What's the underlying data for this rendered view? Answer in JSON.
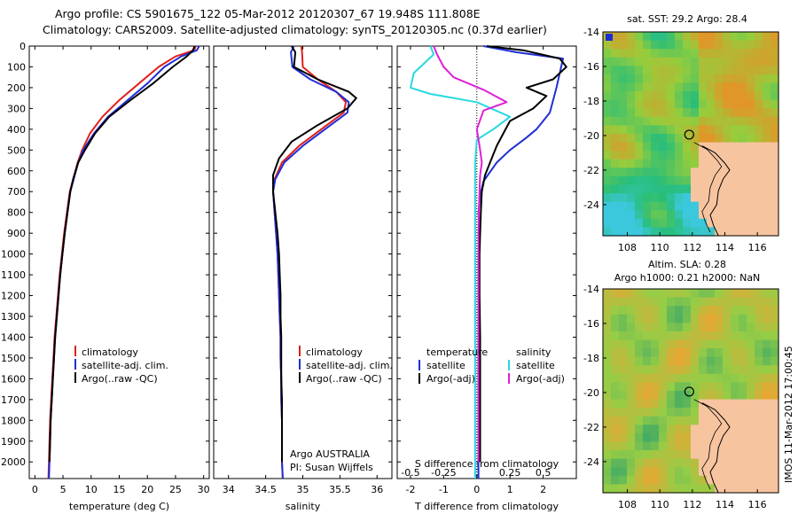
{
  "title": {
    "line1": "Argo profile: CS 5901675_122 05-Mar-2012 20120307_67 19.948S 111.808E",
    "line2": "Climatology: CARS2009. Satellite-adjusted climatology: synTS_20120305.nc (0.37d earlier)"
  },
  "stamp": "IMOS 11-Mar-2012 17:00:45",
  "colors": {
    "climatology": "#e0201b",
    "satellite": "#1f2fd6",
    "argo": "#000000",
    "sal_satellite": "#27d9e0",
    "sal_argo": "#e020d8"
  },
  "chart_data": [
    {
      "type": "line",
      "name": "temperature-panel",
      "xlabel": "temperature (deg C)",
      "ylabel": "",
      "xlim": [
        -1,
        31
      ],
      "ylim": [
        2080,
        0
      ],
      "xticks": [
        0,
        5,
        10,
        15,
        20,
        25,
        30
      ],
      "yticks": [
        0,
        100,
        200,
        300,
        400,
        500,
        600,
        700,
        800,
        900,
        1000,
        1100,
        1200,
        1300,
        1400,
        1500,
        1600,
        1700,
        1800,
        1900,
        2000
      ],
      "legend": {
        "items": [
          "climatology",
          "satellite-adj. clim.",
          "Argo(..raw -QC)"
        ]
      },
      "series": [
        {
          "name": "climatology",
          "color": "#e0201b",
          "x": [
            28.6,
            28.3,
            25,
            22,
            18.5,
            15,
            12,
            9.8,
            8.4,
            7.6,
            6.8,
            6.2,
            5.7,
            5.2,
            4.8,
            4.4,
            4.1,
            3.8,
            3.5,
            3.3,
            3.1,
            2.9,
            2.7,
            2.6,
            2.5,
            2.4
          ],
          "y": [
            0,
            20,
            50,
            100,
            180,
            260,
            340,
            420,
            500,
            560,
            640,
            700,
            800,
            900,
            1000,
            1100,
            1200,
            1300,
            1400,
            1500,
            1600,
            1700,
            1800,
            1900,
            2000,
            2080
          ]
        },
        {
          "name": "satellite-adj. clim.",
          "color": "#1f2fd6",
          "x": [
            29.2,
            28.8,
            26,
            23,
            20,
            16.5,
            13,
            10.5,
            8.6,
            7.7,
            6.9,
            6.3,
            5.8,
            5.3,
            4.9,
            4.5,
            4.2,
            3.9,
            3.6,
            3.4,
            3.2,
            3,
            2.8,
            2.7,
            2.6,
            2.5
          ],
          "y": [
            0,
            20,
            50,
            100,
            180,
            260,
            340,
            420,
            500,
            560,
            640,
            700,
            800,
            900,
            1000,
            1100,
            1200,
            1300,
            1400,
            1500,
            1600,
            1700,
            1800,
            1900,
            2000,
            2080
          ]
        },
        {
          "name": "Argo(..raw -QC)",
          "color": "#000000",
          "x": [
            28.4,
            28.1,
            27,
            24.5,
            21,
            17,
            13.2,
            10.7,
            8.9,
            7.7,
            6.8,
            6.3,
            5.8,
            5.3,
            4.9,
            4.5,
            4.2,
            3.9,
            3.6,
            3.4,
            3.2,
            3,
            2.8,
            2.7,
            2.6
          ],
          "y": [
            0,
            20,
            50,
            100,
            180,
            260,
            340,
            420,
            500,
            560,
            640,
            700,
            800,
            900,
            1000,
            1100,
            1200,
            1300,
            1400,
            1500,
            1600,
            1700,
            1800,
            1900,
            2000
          ]
        }
      ]
    },
    {
      "type": "line",
      "name": "salinity-panel",
      "xlabel": "salinity",
      "ylabel": "",
      "xlim": [
        33.8,
        36.2
      ],
      "ylim": [
        2080,
        0
      ],
      "xticks": [
        34,
        34.5,
        35,
        35.5,
        36
      ],
      "legend": {
        "items": [
          "climatology",
          "satellite-adj. clim.",
          "Argo(..raw -QC)"
        ]
      },
      "annotation": {
        "line1": "Argo AUSTRALIA",
        "line2": "PI: Susan Wijffels"
      },
      "series": [
        {
          "name": "climatology",
          "color": "#e0201b",
          "x": [
            34.98,
            34.99,
            35,
            35.2,
            35.45,
            35.58,
            35.55,
            35.25,
            34.95,
            34.72,
            34.62,
            34.6,
            34.62,
            34.64,
            34.66,
            34.67,
            34.68,
            34.69,
            34.7,
            34.7,
            34.71,
            34.71,
            34.72,
            34.72,
            34.72,
            34.73
          ],
          "y": [
            0,
            30,
            100,
            160,
            220,
            270,
            320,
            400,
            480,
            560,
            640,
            700,
            800,
            900,
            1000,
            1100,
            1200,
            1300,
            1400,
            1500,
            1600,
            1700,
            1800,
            1900,
            2000,
            2080
          ]
        },
        {
          "name": "satellite-adj. clim.",
          "color": "#1f2fd6",
          "x": [
            34.88,
            34.84,
            34.86,
            35.1,
            35.45,
            35.62,
            35.6,
            35.3,
            35,
            34.75,
            34.63,
            34.6,
            34.62,
            34.64,
            34.66,
            34.67,
            34.68,
            34.69,
            34.7,
            34.7,
            34.71,
            34.71,
            34.72,
            34.72,
            34.72,
            34.73
          ],
          "y": [
            0,
            30,
            100,
            160,
            220,
            270,
            320,
            400,
            480,
            560,
            640,
            700,
            800,
            900,
            1000,
            1100,
            1200,
            1300,
            1400,
            1500,
            1600,
            1700,
            1800,
            1900,
            2000,
            2080
          ]
        },
        {
          "name": "Argo(..raw -QC)",
          "color": "#000000",
          "x": [
            34.85,
            34.9,
            34.88,
            35.2,
            35.62,
            35.72,
            35.6,
            35.2,
            34.85,
            34.68,
            34.6,
            34.6,
            34.63,
            34.66,
            34.68,
            34.69,
            34.7,
            34.7,
            34.71,
            34.71,
            34.71,
            34.72,
            34.72,
            34.72,
            34.72
          ],
          "y": [
            0,
            30,
            100,
            160,
            220,
            250,
            300,
            380,
            460,
            540,
            620,
            700,
            800,
            900,
            1000,
            1100,
            1200,
            1300,
            1400,
            1500,
            1600,
            1700,
            1800,
            1900,
            2000
          ]
        }
      ]
    },
    {
      "type": "line",
      "name": "difference-panel",
      "xlabel": "T difference from climatology",
      "top_label": "S difference from climatology",
      "xlim": [
        -2.4,
        3.0
      ],
      "ylim": [
        2080,
        0
      ],
      "xticks_bottom": [
        "-2",
        "-1",
        "0",
        "1",
        "2"
      ],
      "xticks_bottom_values": [
        -2,
        -1,
        0,
        1,
        2
      ],
      "xticks_top": [
        "-0.5",
        "-0.25",
        "0",
        "0.25",
        "0.5"
      ],
      "xticks_top_values": [
        -0.5,
        -0.25,
        0,
        0.25,
        0.5
      ],
      "legend": {
        "temperature_header": "temperature",
        "salinity_header": "salinity",
        "items": [
          "satellite",
          "Argo(-adj)",
          "satellite",
          "Argo(-adj)"
        ]
      },
      "series": [
        {
          "name": "temperature satellite",
          "color": "#1f2fd6",
          "x": [
            0.2,
            1.2,
            2.6,
            2.4,
            2.2,
            2.0,
            1.8,
            1.5,
            1.0,
            0.6,
            0.2,
            0.1,
            0.05,
            0.08,
            0.05,
            0.05,
            0.05,
            0.05,
            0.05,
            0.05,
            0.05,
            0.05,
            0.05
          ],
          "y": [
            0,
            30,
            60,
            200,
            320,
            360,
            400,
            440,
            500,
            560,
            650,
            720,
            800,
            900,
            1000,
            1100,
            1200,
            1400,
            1600,
            1800,
            1900,
            2000,
            2080
          ]
        },
        {
          "name": "temperature Argo",
          "color": "#000000",
          "x": [
            0.3,
            1.4,
            2.5,
            2.7,
            2.3,
            1.5,
            2.1,
            1.7,
            1.0,
            0.8,
            0.6,
            0.4,
            0.25,
            0.15,
            0.12,
            0.1,
            0.08,
            0.08,
            0.1,
            0.1,
            0.1,
            0.1,
            0.1
          ],
          "y": [
            0,
            20,
            60,
            100,
            160,
            200,
            240,
            300,
            360,
            420,
            480,
            560,
            620,
            700,
            800,
            900,
            1000,
            1200,
            1400,
            1600,
            1800,
            1900,
            2000
          ]
        },
        {
          "name": "salinity satellite",
          "color": "#27d9e0",
          "x": [
            -1.4,
            -1.3,
            -1.9,
            -2.0,
            -1.4,
            0.0,
            1.0,
            0.5,
            0.0,
            -0.05,
            -0.05,
            -0.05,
            -0.05,
            -0.05,
            -0.05,
            -0.05,
            -0.05,
            -0.05,
            -0.05,
            -0.05,
            -0.05,
            -0.05
          ],
          "y": [
            0,
            40,
            130,
            200,
            230,
            270,
            340,
            400,
            450,
            560,
            700,
            800,
            900,
            1000,
            1100,
            1200,
            1400,
            1600,
            1800,
            1900,
            2000,
            2080
          ]
        },
        {
          "name": "salinity Argo",
          "color": "#e020d8",
          "x": [
            -1.3,
            -1.2,
            -1.0,
            -0.7,
            0.2,
            0.9,
            0.2,
            0.0,
            0.1,
            0.15,
            0.1,
            0.08,
            0.06,
            0.05,
            0.05,
            0.05,
            0.05,
            0.05,
            0.05,
            0.05,
            0.05
          ],
          "y": [
            0,
            40,
            100,
            150,
            210,
            270,
            310,
            400,
            500,
            560,
            620,
            700,
            800,
            900,
            1000,
            1200,
            1400,
            1600,
            1800,
            1900,
            2000
          ]
        }
      ]
    },
    {
      "type": "heatmap",
      "name": "sst-map",
      "title": "sat. SST: 29.2 Argo: 28.4",
      "xlim": [
        106.5,
        117.3
      ],
      "ylim": [
        -25.8,
        -14
      ],
      "xticks": [
        108,
        110,
        112,
        114,
        116
      ],
      "yticks": [
        -14,
        -16,
        -18,
        -20,
        -22,
        -24
      ],
      "marker": {
        "lon": 111.808,
        "lat": -19.948
      }
    },
    {
      "type": "heatmap",
      "name": "sla-map",
      "title1": "Altim. SLA: 0.28",
      "title2": "Argo h1000: 0.21 h2000: NaN",
      "xlim": [
        106.5,
        117.3
      ],
      "ylim": [
        -25.8,
        -14
      ],
      "xticks": [
        108,
        110,
        112,
        114,
        116
      ],
      "yticks": [
        -14,
        -16,
        -18,
        -20,
        -22,
        -24
      ],
      "marker": {
        "lon": 111.808,
        "lat": -19.948
      }
    }
  ]
}
